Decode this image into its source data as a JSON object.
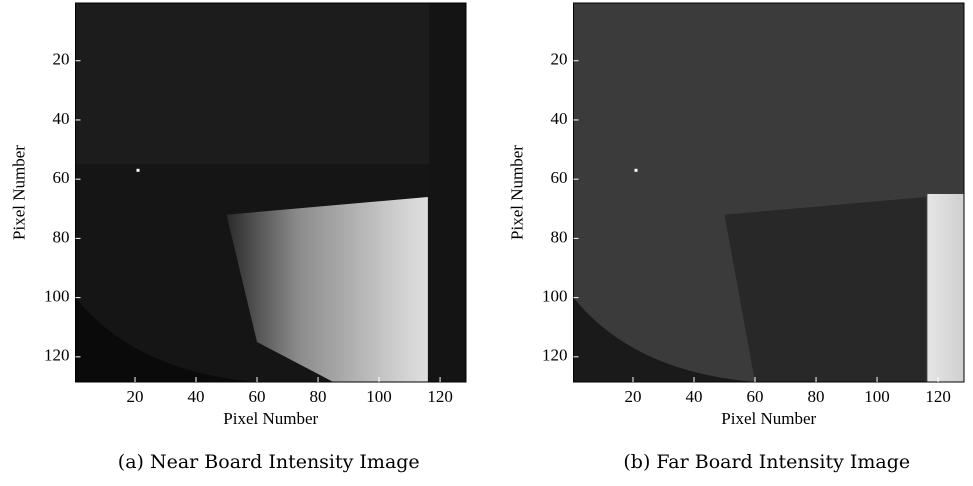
{
  "chart_data": [
    {
      "type": "image",
      "caption": "(a) Near Board Intensity Image",
      "xlabel": "Pixel Number",
      "ylabel": "Pixel Number",
      "xlim": [
        0.5,
        128.5
      ],
      "ylim": [
        128.5,
        0.5
      ],
      "xticks": [
        20,
        40,
        60,
        80,
        100,
        120
      ],
      "yticks": [
        20,
        40,
        60,
        80,
        100,
        120
      ]
    },
    {
      "type": "image",
      "caption": "(b) Far Board Intensity Image",
      "xlabel": "Pixel Number",
      "ylabel": "Pixel Number",
      "xlim": [
        0.5,
        128.5
      ],
      "ylim": [
        128.5,
        0.5
      ],
      "xticks": [
        20,
        40,
        60,
        80,
        100,
        120
      ],
      "yticks": [
        20,
        40,
        60,
        80,
        100,
        120
      ]
    }
  ]
}
